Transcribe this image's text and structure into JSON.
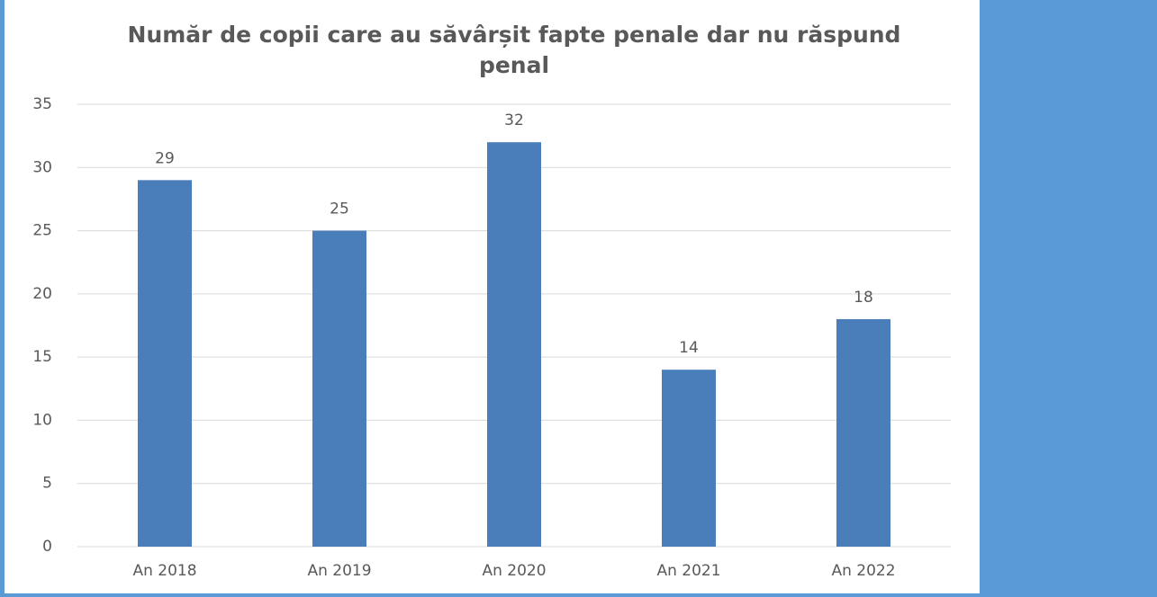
{
  "chart_data": {
    "type": "bar",
    "title": "Număr de copii care au săvârșit fapte penale dar nu răspund penal",
    "categories": [
      "An 2018",
      "An 2019",
      "An 2020",
      "An 2021",
      "An 2022"
    ],
    "values": [
      29,
      25,
      32,
      14,
      18
    ],
    "color": "#4a7ebb",
    "ylim": [
      0,
      35
    ],
    "yticks": [
      0,
      5,
      10,
      15,
      20,
      25,
      30,
      35
    ],
    "grid": true
  }
}
